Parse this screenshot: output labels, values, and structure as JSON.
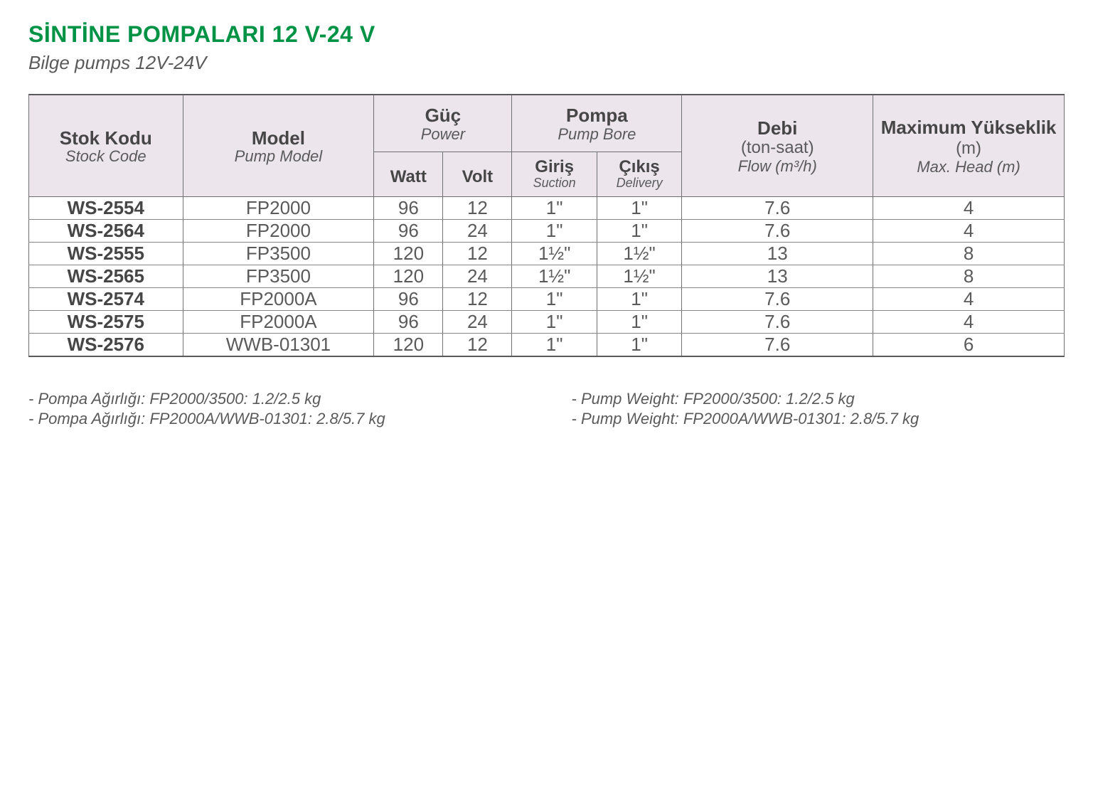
{
  "title": "SİNTİNE POMPALARI 12 V-24 V",
  "subtitle": "Bilge pumps 12V-24V",
  "colors": {
    "accent": "#009245",
    "header_bg": "#ece5ec",
    "border": "#707070",
    "text_dark": "#464646",
    "text_mid": "#5a5a5a"
  },
  "headers": {
    "stock_code": {
      "tr": "Stok Kodu",
      "en": "Stock Code"
    },
    "model": {
      "tr": "Model",
      "en": "Pump Model"
    },
    "power": {
      "tr": "Güç",
      "en": "Power"
    },
    "watt": "Watt",
    "volt": "Volt",
    "bore": {
      "tr": "Pompa",
      "en": "Pump Bore"
    },
    "suction": {
      "tr": "Giriş",
      "en": "Suction"
    },
    "delivery": {
      "tr": "Çıkış",
      "en": "Delivery"
    },
    "flow": {
      "tr": "Debi",
      "unit": "(ton-saat)",
      "en": "Flow (m³/h)"
    },
    "head": {
      "tr": "Maximum Yükseklik",
      "unit": "(m)",
      "en": "Max. Head (m)"
    }
  },
  "rows": [
    {
      "code": "WS-2554",
      "model": "FP2000",
      "watt": "96",
      "volt": "12",
      "suction": "1\"",
      "delivery": "1\"",
      "flow": "7.6",
      "head": "4"
    },
    {
      "code": "WS-2564",
      "model": "FP2000",
      "watt": "96",
      "volt": "24",
      "suction": "1\"",
      "delivery": "1\"",
      "flow": "7.6",
      "head": "4"
    },
    {
      "code": "WS-2555",
      "model": "FP3500",
      "watt": "120",
      "volt": "12",
      "suction": "1½\"",
      "delivery": "1½\"",
      "flow": "13",
      "head": "8"
    },
    {
      "code": "WS-2565",
      "model": "FP3500",
      "watt": "120",
      "volt": "24",
      "suction": "1½\"",
      "delivery": "1½\"",
      "flow": "13",
      "head": "8"
    },
    {
      "code": "WS-2574",
      "model": "FP2000A",
      "watt": "96",
      "volt": "12",
      "suction": "1\"",
      "delivery": "1\"",
      "flow": "7.6",
      "head": "4"
    },
    {
      "code": "WS-2575",
      "model": "FP2000A",
      "watt": "96",
      "volt": "24",
      "suction": "1\"",
      "delivery": "1\"",
      "flow": "7.6",
      "head": "4"
    },
    {
      "code": "WS-2576",
      "model": "WWB-01301",
      "watt": "120",
      "volt": "12",
      "suction": "1\"",
      "delivery": "1\"",
      "flow": "7.6",
      "head": "6"
    }
  ],
  "footnotes": {
    "left": [
      "- Pompa Ağırlığı: FP2000/3500: 1.2/2.5 kg",
      "- Pompa Ağırlığı: FP2000A/WWB-01301: 2.8/5.7 kg"
    ],
    "right": [
      "- Pump Weight: FP2000/3500: 1.2/2.5 kg",
      "- Pump Weight: FP2000A/WWB-01301: 2.8/5.7 kg"
    ]
  }
}
